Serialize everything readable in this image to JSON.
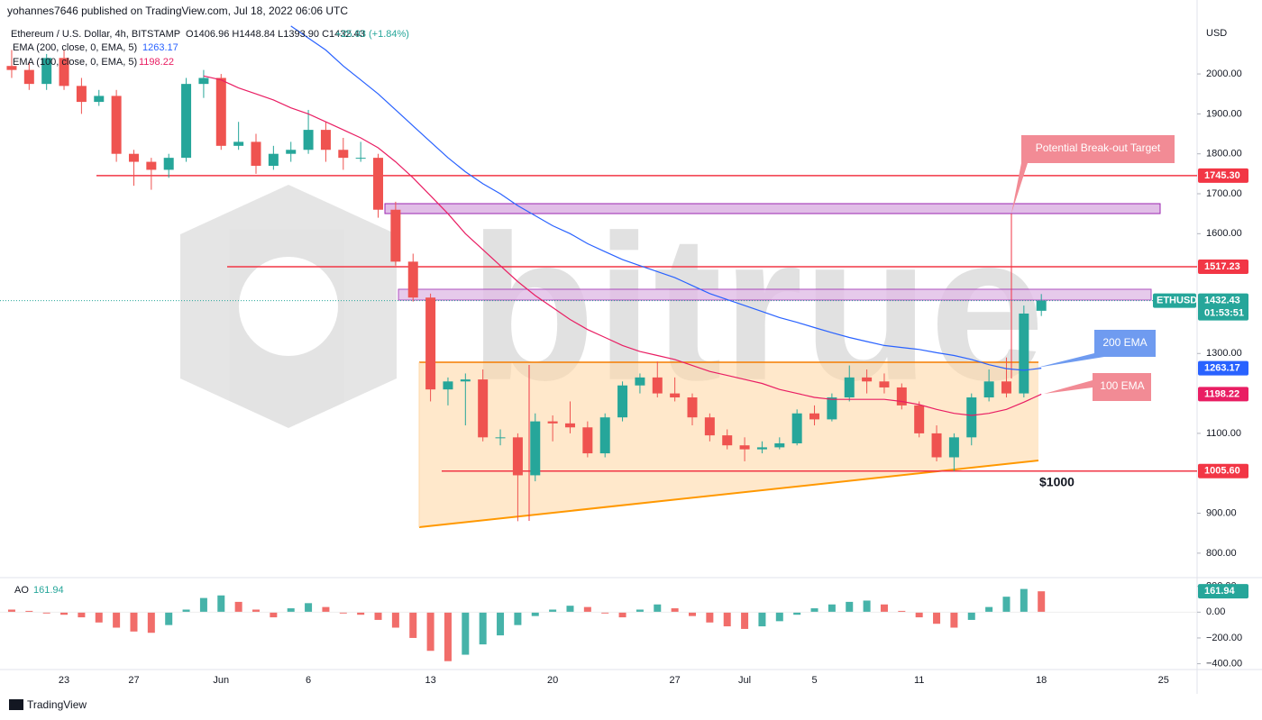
{
  "chart_data": {
    "type": "candlestick",
    "header": {
      "publisher": "yohannes7646 published on TradingView.com, Jul 18, 2022 06:06 UTC",
      "symbol": "Ethereum / U.S. Dollar, 4h, BITSTAMP",
      "ohlc": "O1406.96 H1448.84 L1393.90 C1432.43",
      "change": "+25.93 (+1.84%)",
      "currency": "USD",
      "ticker": "ETHUSD",
      "countdown": "01:53:51",
      "footer": "TradingView",
      "watermark": "bitrue"
    },
    "categories": [
      null,
      null,
      null,
      null,
      "23",
      null,
      null,
      null,
      "27",
      null,
      null,
      null,
      null,
      "Jun",
      null,
      null,
      null,
      null,
      "6",
      null,
      null,
      null,
      null,
      null,
      null,
      "13",
      null,
      null,
      null,
      null,
      null,
      null,
      "20",
      null,
      null,
      null,
      null,
      null,
      null,
      "27",
      null,
      null,
      null,
      "Jul",
      null,
      null,
      null,
      "5",
      null,
      null,
      null,
      null,
      null,
      "11",
      null,
      null,
      null,
      null,
      null,
      null,
      "18",
      null,
      null,
      null,
      null,
      null,
      null,
      "25",
      null,
      null
    ],
    "candles": {
      "up_color": "#26a69a",
      "down_color": "#ef5350",
      "open": [
        2000,
        2020,
        2010,
        1975,
        2040,
        1970,
        1930,
        1945,
        1800,
        1780,
        1760,
        1790,
        1975,
        1990,
        1820,
        1830,
        1770,
        1800,
        1810,
        1860,
        1810,
        1790,
        1790,
        1660,
        1530,
        1440,
        1210,
        1230,
        1235,
        1090,
        1090,
        995,
        1130,
        1125,
        1115,
        1050,
        1140,
        1220,
        1240,
        1200,
        1190,
        1140,
        1095,
        1070,
        1060,
        1065,
        1075,
        1150,
        1135,
        1190,
        1240,
        1230,
        1215,
        1170,
        1100,
        1040,
        1090,
        1190,
        1230,
        1200,
        1406.96,
        null,
        null,
        null,
        null,
        null,
        null,
        null,
        null,
        null
      ],
      "high": [
        2050,
        2060,
        2030,
        2050,
        2060,
        1990,
        1960,
        1960,
        1810,
        1790,
        1800,
        1990,
        2010,
        2000,
        1880,
        1850,
        1820,
        1830,
        1910,
        1880,
        1840,
        1830,
        1800,
        1680,
        1550,
        1450,
        1240,
        1250,
        1260,
        1110,
        1100,
        1150,
        1145,
        1180,
        1130,
        1150,
        1230,
        1250,
        1280,
        1240,
        1200,
        1150,
        1110,
        1090,
        1080,
        1090,
        1160,
        1170,
        1200,
        1270,
        1260,
        1250,
        1225,
        1180,
        1120,
        1100,
        1200,
        1260,
        1290,
        1420,
        1448.84,
        null,
        null,
        null,
        null,
        null,
        null,
        null,
        null,
        null
      ],
      "low": [
        1960,
        1990,
        1960,
        1960,
        1960,
        1900,
        1920,
        1780,
        1720,
        1710,
        1740,
        1780,
        1940,
        1810,
        1810,
        1750,
        1760,
        1780,
        1800,
        1780,
        1760,
        1780,
        1640,
        1520,
        1430,
        1180,
        1170,
        1120,
        1080,
        1070,
        880,
        980,
        1080,
        1100,
        1040,
        1040,
        1130,
        1200,
        1190,
        1180,
        1120,
        1080,
        1060,
        1030,
        1050,
        1060,
        1070,
        1120,
        1130,
        1180,
        1200,
        1200,
        1160,
        1090,
        1030,
        1005,
        1070,
        1180,
        1190,
        1190,
        1393.9,
        null,
        null,
        null,
        null,
        null,
        null,
        null,
        null,
        null
      ],
      "close": [
        2020,
        2010,
        1975,
        2040,
        1970,
        1930,
        1945,
        1800,
        1780,
        1760,
        1790,
        1975,
        1990,
        1820,
        1830,
        1770,
        1800,
        1810,
        1860,
        1810,
        1790,
        1790,
        1660,
        1530,
        1440,
        1210,
        1230,
        1235,
        1090,
        1090,
        995,
        1130,
        1125,
        1115,
        1050,
        1140,
        1220,
        1240,
        1200,
        1190,
        1140,
        1095,
        1070,
        1060,
        1065,
        1075,
        1150,
        1135,
        1190,
        1240,
        1230,
        1215,
        1170,
        1100,
        1040,
        1090,
        1190,
        1230,
        1200,
        1400,
        1432.43,
        null,
        null,
        null,
        null,
        null,
        null,
        null,
        null,
        null
      ]
    },
    "series": [
      {
        "name": "EMA (200, close, 0, EMA, 5)",
        "color": "#2962ff",
        "values": [
          null,
          null,
          null,
          null,
          null,
          null,
          null,
          null,
          null,
          null,
          null,
          null,
          null,
          null,
          null,
          null,
          null,
          2120,
          2090,
          2060,
          2020,
          1985,
          1950,
          1910,
          1870,
          1830,
          1790,
          1755,
          1725,
          1700,
          1670,
          1645,
          1620,
          1600,
          1575,
          1555,
          1535,
          1520,
          1505,
          1490,
          1470,
          1450,
          1435,
          1420,
          1405,
          1390,
          1378,
          1365,
          1352,
          1340,
          1330,
          1320,
          1315,
          1310,
          1302,
          1295,
          1285,
          1272,
          1262,
          1258,
          1263.17,
          null,
          null,
          null,
          null,
          null,
          null,
          null,
          null,
          null
        ]
      },
      {
        "name": "EMA (100, close, 0, EMA, 5)",
        "color": "#e91e63",
        "values": [
          null,
          null,
          null,
          null,
          null,
          null,
          null,
          null,
          null,
          null,
          null,
          null,
          1995,
          1985,
          1965,
          1950,
          1935,
          1915,
          1900,
          1880,
          1860,
          1840,
          1815,
          1780,
          1740,
          1695,
          1650,
          1600,
          1560,
          1520,
          1480,
          1445,
          1415,
          1385,
          1360,
          1340,
          1320,
          1305,
          1295,
          1285,
          1270,
          1255,
          1245,
          1235,
          1225,
          1210,
          1200,
          1190,
          1185,
          1185,
          1185,
          1185,
          1180,
          1172,
          1160,
          1150,
          1145,
          1150,
          1160,
          1178,
          1198.22,
          null,
          null,
          null,
          null,
          null,
          null,
          null,
          null,
          null
        ]
      }
    ],
    "ylim": [
      741,
      2122
    ],
    "yticks": [
      {
        "value": 800,
        "label": "800.00"
      },
      {
        "value": 900,
        "label": "900.00"
      },
      {
        "value": 1100,
        "label": "1100.00"
      },
      {
        "value": 1300,
        "label": "1300.00"
      },
      {
        "value": 1600,
        "label": "1600.00"
      },
      {
        "value": 1700,
        "label": "1700.00"
      },
      {
        "value": 1800,
        "label": "1800.00"
      },
      {
        "value": 1900,
        "label": "1900.00"
      },
      {
        "value": 2000,
        "label": "2000.00"
      }
    ],
    "levels": [
      {
        "value": 1745.3,
        "label": "1745.30",
        "color": "#f23645"
      },
      {
        "value": 1517.23,
        "label": "1517.23",
        "color": "#f23645"
      },
      {
        "value": 1005.6,
        "label": "1005.60",
        "color": "#f23645"
      }
    ],
    "annotations": {
      "breakout": "Potential Break-out Target",
      "ema200": "200 EMA",
      "ema100": "100 EMA",
      "target": "$1000"
    },
    "ao": {
      "name": "AO",
      "up_color": "#26a69a",
      "down_color": "#ef5350",
      "values": [
        30,
        20,
        10,
        -10,
        -20,
        -40,
        -80,
        -120,
        -150,
        -160,
        -100,
        20,
        110,
        130,
        80,
        20,
        -40,
        30,
        70,
        40,
        -10,
        -20,
        -60,
        -120,
        -200,
        -300,
        -380,
        -330,
        -250,
        -180,
        -100,
        -30,
        20,
        50,
        40,
        -10,
        -40,
        20,
        60,
        30,
        -30,
        -80,
        -110,
        -130,
        -110,
        -70,
        -20,
        30,
        60,
        80,
        90,
        60,
        10,
        -40,
        -90,
        -120,
        -60,
        40,
        120,
        180,
        161.94,
        null,
        null,
        null,
        null,
        null,
        null,
        null,
        null,
        null
      ],
      "ylim": [
        -445,
        268
      ],
      "yticks": [
        {
          "value": 200,
          "label": "200.00"
        },
        {
          "value": 0,
          "label": "0.00"
        },
        {
          "value": -200,
          "label": "−200.00"
        },
        {
          "value": -400,
          "label": "−400.00"
        }
      ]
    }
  }
}
